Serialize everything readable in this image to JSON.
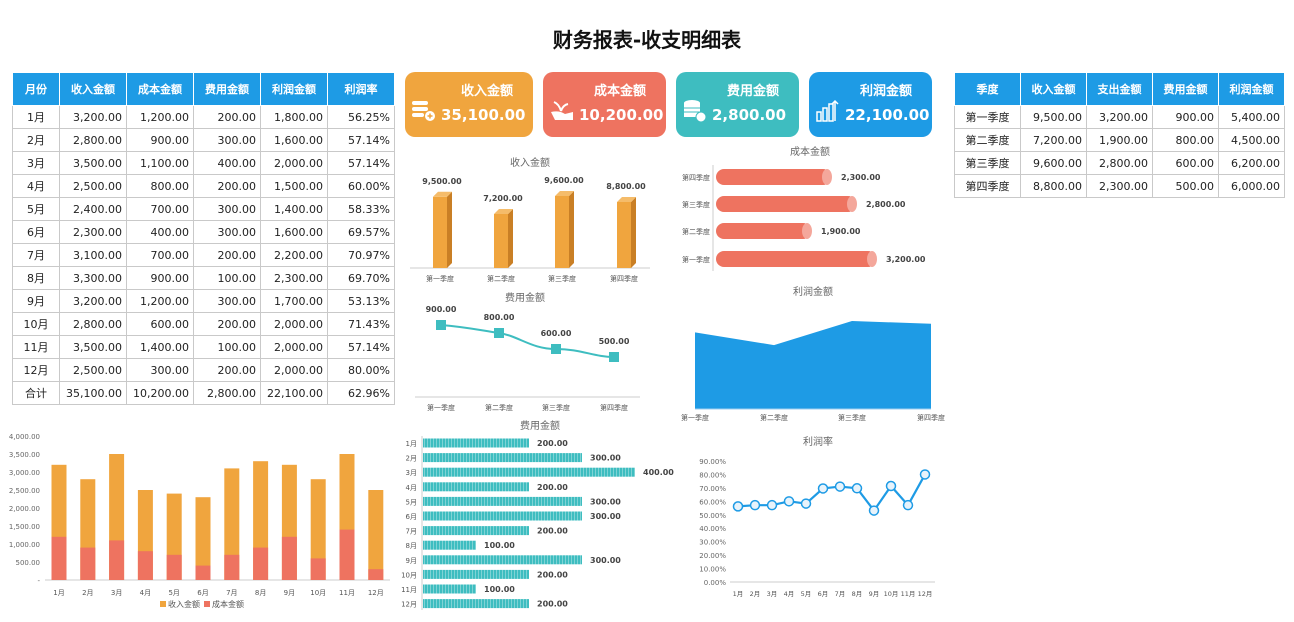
{
  "title": "财务报表-收支明细表",
  "monthly_table": {
    "headers": [
      "月份",
      "收入金额",
      "成本金额",
      "费用金额",
      "利润金额",
      "利润率"
    ],
    "rows": [
      [
        "1月",
        "3,200.00",
        "1,200.00",
        "200.00",
        "1,800.00",
        "56.25%"
      ],
      [
        "2月",
        "2,800.00",
        "900.00",
        "300.00",
        "1,600.00",
        "57.14%"
      ],
      [
        "3月",
        "3,500.00",
        "1,100.00",
        "400.00",
        "2,000.00",
        "57.14%"
      ],
      [
        "4月",
        "2,500.00",
        "800.00",
        "200.00",
        "1,500.00",
        "60.00%"
      ],
      [
        "5月",
        "2,400.00",
        "700.00",
        "300.00",
        "1,400.00",
        "58.33%"
      ],
      [
        "6月",
        "2,300.00",
        "400.00",
        "300.00",
        "1,600.00",
        "69.57%"
      ],
      [
        "7月",
        "3,100.00",
        "700.00",
        "200.00",
        "2,200.00",
        "70.97%"
      ],
      [
        "8月",
        "3,300.00",
        "900.00",
        "100.00",
        "2,300.00",
        "69.70%"
      ],
      [
        "9月",
        "3,200.00",
        "1,200.00",
        "300.00",
        "1,700.00",
        "53.13%"
      ],
      [
        "10月",
        "2,800.00",
        "600.00",
        "200.00",
        "2,000.00",
        "71.43%"
      ],
      [
        "11月",
        "3,500.00",
        "1,400.00",
        "100.00",
        "2,000.00",
        "57.14%"
      ],
      [
        "12月",
        "2,500.00",
        "300.00",
        "200.00",
        "2,000.00",
        "80.00%"
      ],
      [
        "合计",
        "35,100.00",
        "10,200.00",
        "2,800.00",
        "22,100.00",
        "62.96%"
      ]
    ]
  },
  "quarter_table": {
    "headers": [
      "季度",
      "收入金额",
      "支出金额",
      "费用金额",
      "利润金额"
    ],
    "rows": [
      [
        "第一季度",
        "9,500.00",
        "3,200.00",
        "900.00",
        "5,400.00"
      ],
      [
        "第二季度",
        "7,200.00",
        "1,900.00",
        "800.00",
        "4,500.00"
      ],
      [
        "第三季度",
        "9,600.00",
        "2,800.00",
        "600.00",
        "6,200.00"
      ],
      [
        "第四季度",
        "8,800.00",
        "2,300.00",
        "500.00",
        "6,000.00"
      ]
    ]
  },
  "kpis": [
    {
      "label": "收入金额",
      "value": "35,100.00",
      "color": "#F0A53E",
      "icon": "coins-plus-icon"
    },
    {
      "label": "成本金额",
      "value": "10,200.00",
      "color": "#EE7360",
      "icon": "hand-plant-icon"
    },
    {
      "label": "费用金额",
      "value": "2,800.00",
      "color": "#3EBDC0",
      "icon": "coin-stack-icon"
    },
    {
      "label": "利润金额",
      "value": "22,100.00",
      "color": "#1E9BE5",
      "icon": "bar-growth-icon"
    }
  ],
  "chart_data": [
    {
      "id": "q_income",
      "type": "bar",
      "title": "收入金额",
      "categories": [
        "第一季度",
        "第二季度",
        "第三季度",
        "第四季度"
      ],
      "values": [
        9500,
        7200,
        9600,
        8800
      ],
      "labels": [
        "9,500.00",
        "7,200.00",
        "9,600.00",
        "8,800.00"
      ],
      "color": "#F0A53E"
    },
    {
      "id": "q_cost",
      "type": "bar",
      "orientation": "horizontal",
      "title": "成本金额",
      "categories": [
        "第四季度",
        "第三季度",
        "第二季度",
        "第一季度"
      ],
      "values": [
        2300,
        2800,
        1900,
        3200
      ],
      "labels": [
        "2,300.00",
        "2,800.00",
        "1,900.00",
        "3,200.00"
      ],
      "color": "#EE7360"
    },
    {
      "id": "q_fee",
      "type": "line",
      "title": "费用金额",
      "categories": [
        "第一季度",
        "第二季度",
        "第三季度",
        "第四季度"
      ],
      "values": [
        900,
        800,
        600,
        500
      ],
      "labels": [
        "900.00",
        "800.00",
        "600.00",
        "500.00"
      ],
      "color": "#3EBDC0"
    },
    {
      "id": "q_profit",
      "type": "area",
      "title": "利润金额",
      "categories": [
        "第一季度",
        "第二季度",
        "第三季度",
        "第四季度"
      ],
      "values": [
        5400,
        4500,
        6200,
        6000
      ],
      "color": "#1E9BE5"
    },
    {
      "id": "m_income_cost",
      "type": "bar",
      "title": "",
      "categories": [
        "1月",
        "2月",
        "3月",
        "4月",
        "5月",
        "6月",
        "7月",
        "8月",
        "9月",
        "10月",
        "11月",
        "12月"
      ],
      "series": [
        {
          "name": "收入金额",
          "values": [
            3200,
            2800,
            3500,
            2500,
            2400,
            2300,
            3100,
            3300,
            3200,
            2800,
            3500,
            2500
          ],
          "color": "#F0A53E"
        },
        {
          "name": "成本金额",
          "values": [
            1200,
            900,
            1100,
            800,
            700,
            400,
            700,
            900,
            1200,
            600,
            1400,
            300
          ],
          "color": "#EE7360"
        }
      ],
      "yticks": [
        "-",
        "500.00",
        "1,000.00",
        "1,500.00",
        "2,000.00",
        "2,500.00",
        "3,000.00",
        "3,500.00",
        "4,000.00"
      ],
      "ylim": [
        0,
        4000
      ],
      "legend": "bottom"
    },
    {
      "id": "m_fee",
      "type": "bar",
      "orientation": "horizontal",
      "title": "费用金额",
      "categories": [
        "1月",
        "2月",
        "3月",
        "4月",
        "5月",
        "6月",
        "7月",
        "8月",
        "9月",
        "10月",
        "11月",
        "12月"
      ],
      "values": [
        200,
        300,
        400,
        200,
        300,
        300,
        200,
        100,
        300,
        200,
        100,
        200
      ],
      "labels": [
        "200.00",
        "300.00",
        "400.00",
        "200.00",
        "300.00",
        "300.00",
        "200.00",
        "100.00",
        "300.00",
        "200.00",
        "100.00",
        "200.00"
      ],
      "color": "#3EBDC0"
    },
    {
      "id": "m_rate",
      "type": "line",
      "title": "利润率",
      "categories": [
        "1月",
        "2月",
        "3月",
        "4月",
        "5月",
        "6月",
        "7月",
        "8月",
        "9月",
        "10月",
        "11月",
        "12月"
      ],
      "values": [
        56.25,
        57.14,
        57.14,
        60.0,
        58.33,
        69.57,
        70.97,
        69.7,
        53.13,
        71.43,
        57.14,
        80.0
      ],
      "yticks": [
        "0.00%",
        "10.00%",
        "20.00%",
        "30.00%",
        "40.00%",
        "50.00%",
        "60.00%",
        "70.00%",
        "80.00%",
        "90.00%"
      ],
      "ylim": [
        0,
        90
      ],
      "color": "#1E9BE5"
    }
  ]
}
